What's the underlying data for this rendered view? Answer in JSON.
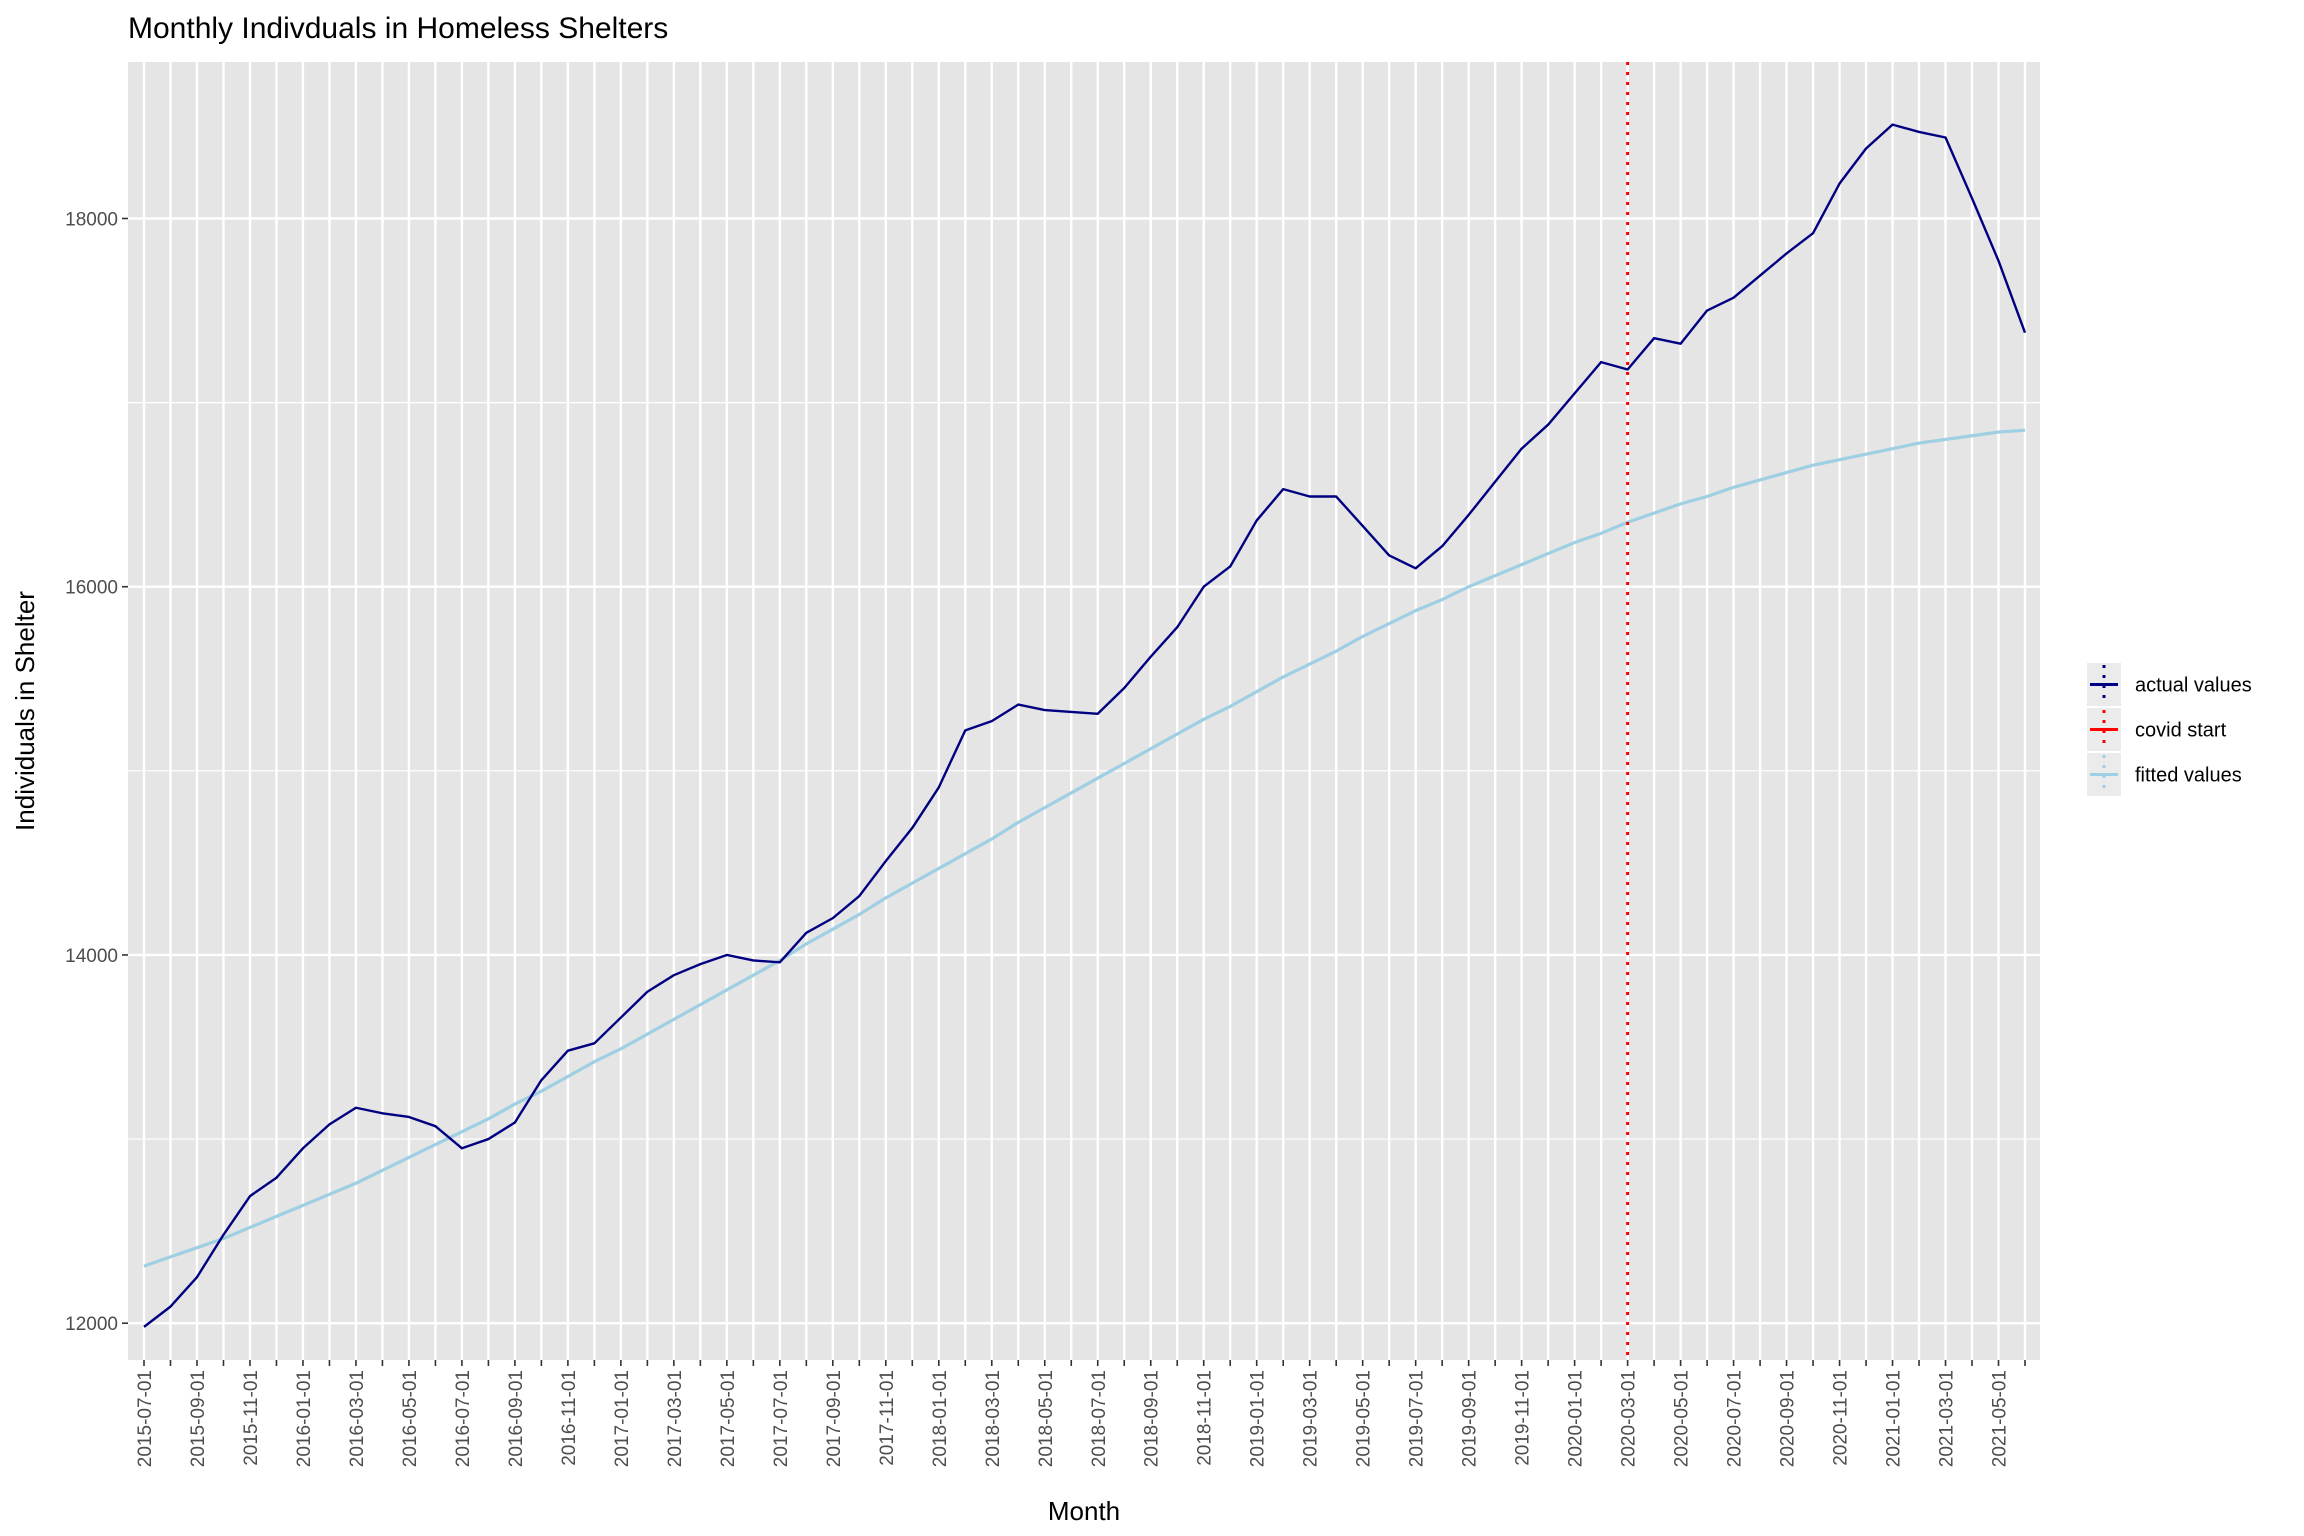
{
  "chart_data": {
    "type": "line",
    "title": "Monthly Indivduals in Homeless Shelters",
    "xlabel": "Month",
    "ylabel": "Individuals in Shelter",
    "ylim": [
      11800,
      18850
    ],
    "y_ticks": [
      12000,
      14000,
      16000,
      18000
    ],
    "grid": true,
    "legend_position": "right",
    "x": [
      "2015-07-01",
      "2015-08-01",
      "2015-09-01",
      "2015-10-01",
      "2015-11-01",
      "2015-12-01",
      "2016-01-01",
      "2016-02-01",
      "2016-03-01",
      "2016-04-01",
      "2016-05-01",
      "2016-06-01",
      "2016-07-01",
      "2016-08-01",
      "2016-09-01",
      "2016-10-01",
      "2016-11-01",
      "2016-12-01",
      "2017-01-01",
      "2017-02-01",
      "2017-03-01",
      "2017-04-01",
      "2017-05-01",
      "2017-06-01",
      "2017-07-01",
      "2017-08-01",
      "2017-09-01",
      "2017-10-01",
      "2017-11-01",
      "2017-12-01",
      "2018-01-01",
      "2018-02-01",
      "2018-03-01",
      "2018-04-01",
      "2018-05-01",
      "2018-06-01",
      "2018-07-01",
      "2018-08-01",
      "2018-09-01",
      "2018-10-01",
      "2018-11-01",
      "2018-12-01",
      "2019-01-01",
      "2019-02-01",
      "2019-03-01",
      "2019-04-01",
      "2019-05-01",
      "2019-06-01",
      "2019-07-01",
      "2019-08-01",
      "2019-09-01",
      "2019-10-01",
      "2019-11-01",
      "2019-12-01",
      "2020-01-01",
      "2020-02-01",
      "2020-03-01",
      "2020-04-01",
      "2020-05-01",
      "2020-06-01",
      "2020-07-01",
      "2020-08-01",
      "2020-09-01",
      "2020-10-01",
      "2020-11-01",
      "2020-12-01",
      "2021-01-01",
      "2021-02-01",
      "2021-03-01",
      "2021-04-01",
      "2021-05-01",
      "2021-06-01"
    ],
    "x_tick_labels": [
      "2015-07-01",
      "2015-09-01",
      "2015-11-01",
      "2016-01-01",
      "2016-03-01",
      "2016-05-01",
      "2016-07-01",
      "2016-09-01",
      "2016-11-01",
      "2017-01-01",
      "2017-03-01",
      "2017-05-01",
      "2017-07-01",
      "2017-09-01",
      "2017-11-01",
      "2018-01-01",
      "2018-03-01",
      "2018-05-01",
      "2018-07-01",
      "2018-09-01",
      "2018-11-01",
      "2019-01-01",
      "2019-03-01",
      "2019-05-01",
      "2019-07-01",
      "2019-09-01",
      "2019-11-01",
      "2020-01-01",
      "2020-03-01",
      "2020-05-01",
      "2020-07-01",
      "2020-09-01",
      "2020-11-01",
      "2021-01-01",
      "2021-03-01",
      "2021-05-01"
    ],
    "series": [
      {
        "name": "actual values",
        "color": "#000080",
        "values": [
          11980,
          12090,
          12250,
          12480,
          12690,
          12790,
          12950,
          13080,
          13170,
          13140,
          13120,
          13070,
          12950,
          13000,
          13090,
          13320,
          13480,
          13520,
          13660,
          13800,
          13890,
          13950,
          14000,
          13970,
          13960,
          14120,
          14200,
          14320,
          14510,
          14690,
          14910,
          15220,
          15270,
          15360,
          15330,
          15320,
          15310,
          15450,
          15620,
          15780,
          16000,
          16110,
          16360,
          16530,
          16490,
          16490,
          16330,
          16170,
          16100,
          16220,
          16390,
          16570,
          16750,
          16880,
          17050,
          17220,
          17180,
          17350,
          17320,
          17500,
          17570,
          17690,
          17810,
          17920,
          18190,
          18380,
          18510,
          18470,
          18440,
          18110,
          17770,
          17380
        ]
      },
      {
        "name": "fitted values",
        "color": "#9ecfe3",
        "values": [
          12310,
          12360,
          12410,
          12460,
          12520,
          12580,
          12640,
          12700,
          12760,
          12830,
          12900,
          12970,
          13040,
          13110,
          13190,
          13260,
          13340,
          13420,
          13490,
          13570,
          13650,
          13730,
          13810,
          13890,
          13970,
          14060,
          14140,
          14220,
          14310,
          14390,
          14470,
          14550,
          14630,
          14720,
          14800,
          14880,
          14960,
          15040,
          15120,
          15200,
          15280,
          15350,
          15430,
          15510,
          15580,
          15650,
          15730,
          15800,
          15870,
          15930,
          16000,
          16060,
          16120,
          16180,
          16240,
          16290,
          16350,
          16400,
          16450,
          16490,
          16540,
          16580,
          16620,
          16660,
          16690,
          16720,
          16750,
          16780,
          16800,
          16820,
          16840,
          16850
        ]
      }
    ],
    "vline": {
      "name": "covid start",
      "x": "2020-03-01",
      "color": "#ff0000"
    },
    "legend": [
      {
        "label": "actual values",
        "color": "#000080"
      },
      {
        "label": "covid start",
        "color": "#ff0000"
      },
      {
        "label": "fitted values",
        "color": "#9ecfe3"
      }
    ]
  }
}
